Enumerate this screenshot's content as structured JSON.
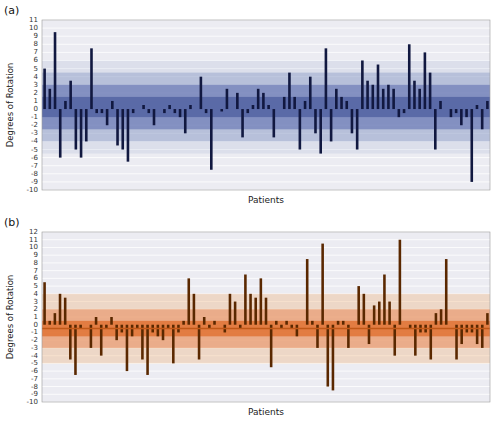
{
  "chart_data": [
    {
      "type": "bar",
      "title": "(a)",
      "xlabel": "Patients",
      "ylabel": "Degrees of Rotation",
      "values": [
        5,
        2.5,
        9.5,
        -6,
        1,
        3.5,
        -5,
        -6,
        -4,
        7.5,
        -0.5,
        -0.5,
        -2,
        1,
        -4.5,
        -5,
        -6.5,
        -0.5,
        0,
        0.5,
        -0.5,
        -2,
        0,
        -0.5,
        0.5,
        -0.5,
        -1,
        -3,
        0.5,
        0,
        4,
        -0.5,
        -7.5,
        0,
        -0.3,
        2.5,
        0,
        2,
        -3.5,
        -0.5,
        0.5,
        2.5,
        2,
        0.5,
        -3.5,
        0,
        1.5,
        4.5,
        1.5,
        -5,
        1,
        4,
        -3,
        -5.5,
        7.5,
        -4,
        2.5,
        1.5,
        1,
        -3,
        -5,
        6,
        3.5,
        3,
        5.5,
        2.5,
        3,
        2.5,
        -1,
        -0.5,
        8,
        3.5,
        2.5,
        7,
        4.5,
        -5,
        1,
        0,
        -1,
        -0.5,
        -2,
        -1,
        -9,
        0.5,
        -2.5,
        1
      ],
      "color": "#111840",
      "bands": [
        {
          "low": -1.0,
          "high": 1.5,
          "color": "#5060a0"
        },
        {
          "low": -2.5,
          "high": 3.0,
          "color": "#6070b0"
        },
        {
          "low": -4.0,
          "high": 4.5,
          "color": "#8090c0"
        },
        {
          "low": -5.5,
          "high": 6.0,
          "color": "#a0afd0"
        }
      ],
      "ylim": [
        -10,
        11
      ],
      "yticks": [
        -10,
        -9,
        -8,
        -7,
        -6,
        -5,
        -4,
        -3,
        -2,
        -1,
        0,
        1,
        2,
        3,
        4,
        5,
        6,
        7,
        8,
        9,
        10,
        11
      ],
      "grid": true,
      "tick_labels": "y"
    },
    {
      "type": "bar",
      "title": "(b)",
      "xlabel": "Patients",
      "ylabel": "Degrees of Rotation",
      "values": [
        5.5,
        0.5,
        1.5,
        4,
        3.5,
        -4.5,
        -6.5,
        -0.5,
        0,
        -3,
        1,
        -4,
        -0.5,
        1,
        -2,
        -1,
        -6,
        -1.5,
        -0.5,
        -4.5,
        -6.5,
        -1,
        -1.5,
        -2,
        -0.5,
        -5,
        -1,
        0.5,
        6,
        4,
        -4.5,
        1,
        -0.5,
        0.5,
        0,
        -1,
        4,
        3,
        -0.5,
        6.5,
        4,
        3.5,
        6,
        3.5,
        -5.5,
        0.5,
        -0.5,
        0.5,
        -0.5,
        -1.5,
        0,
        8.5,
        0.5,
        -3,
        10.5,
        -8,
        -8.5,
        0.5,
        0.5,
        -3,
        0,
        5,
        4,
        -2.5,
        2.5,
        3,
        6.5,
        3,
        -4,
        11,
        0,
        -0.5,
        -4,
        -1,
        -1,
        -4.5,
        1.5,
        2,
        8.5,
        0,
        -4.5,
        -2.5,
        -1,
        -1,
        -2.5,
        -3,
        1.5
      ],
      "color": "#5a2800",
      "mean_line": {
        "value": -0.5,
        "color": "#c05818"
      },
      "bands": [
        {
          "low": -1.5,
          "high": 0.5,
          "color": "#e07030"
        },
        {
          "low": -3.0,
          "high": 2.0,
          "color": "#e89060"
        },
        {
          "low": -5.0,
          "high": 4.0,
          "color": "#f0b888"
        }
      ],
      "ylim": [
        -10,
        12
      ],
      "yticks": [
        -10,
        -9,
        -8,
        -7,
        -6,
        -5,
        -4,
        -3,
        -2,
        -1,
        0,
        1,
        2,
        3,
        4,
        5,
        6,
        7,
        8,
        9,
        10,
        11,
        12
      ],
      "grid": true,
      "tick_labels": "y"
    }
  ]
}
